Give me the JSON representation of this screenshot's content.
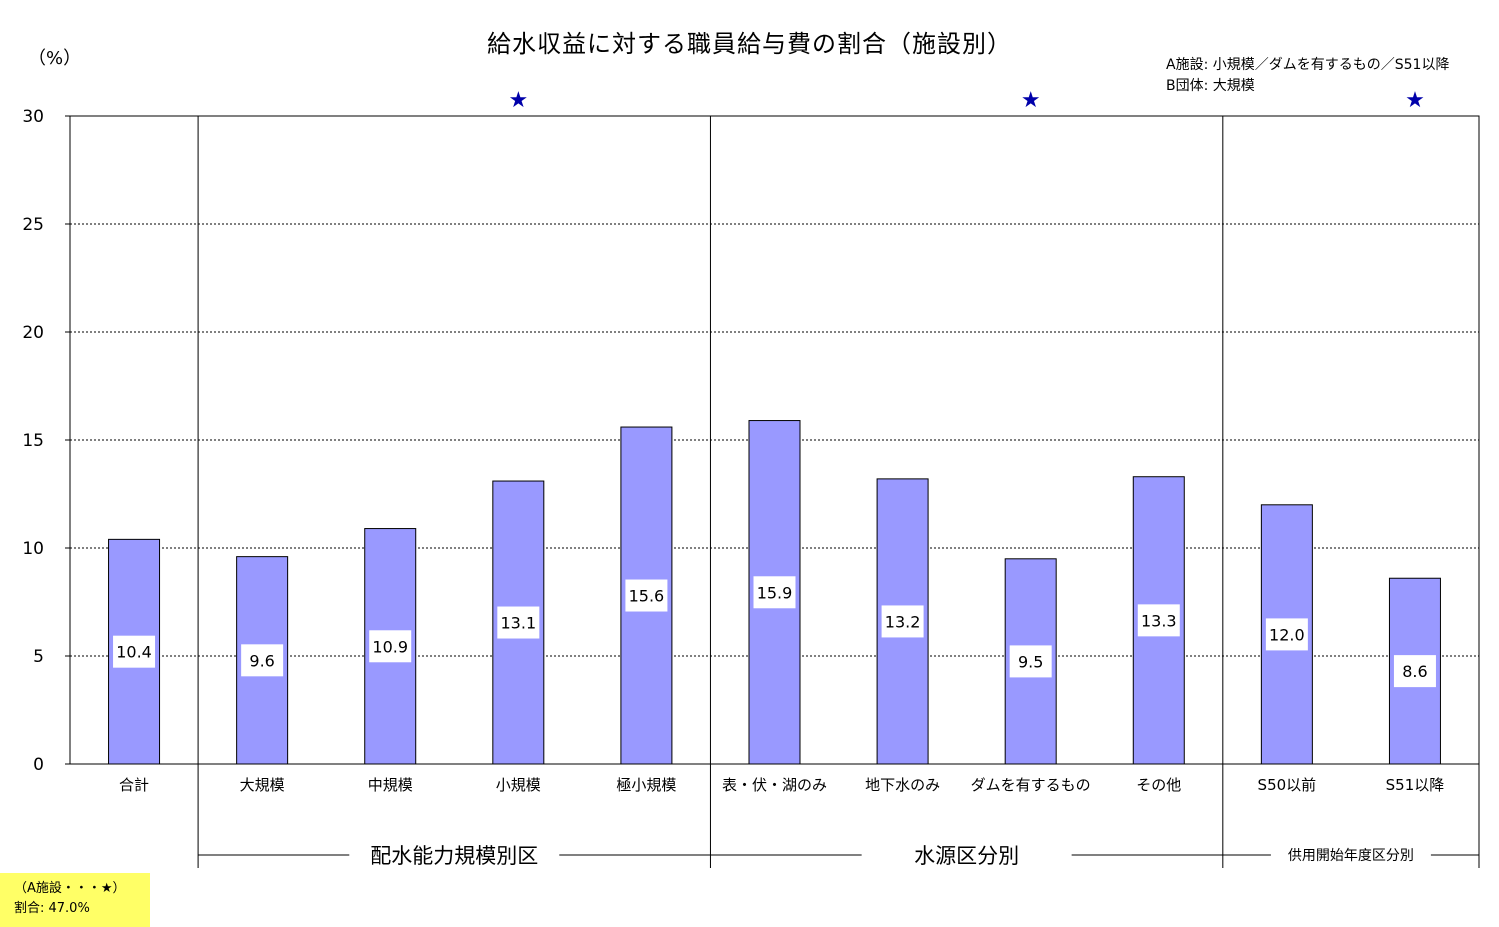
{
  "title": "給水収益に対する職員給与費の割合（施設別）",
  "unit_label": "（%）",
  "legend_note": [
    "A施設: 小規模／ダムを有するもの／S51以降",
    "B団体: 大規模"
  ],
  "yellow_note": {
    "line1": "（A施設・・・★）",
    "line2": "割合: 47.0%"
  },
  "colors": {
    "bar": "#9999ff",
    "star": "#0000aa",
    "note_bg": "#ffff66"
  },
  "chart_data": {
    "type": "bar",
    "title": "給水収益に対する職員給与費の割合（施設別）",
    "ylabel": "（%）",
    "ylim": [
      0,
      30
    ],
    "yticks": [
      0,
      5,
      10,
      15,
      20,
      25,
      30
    ],
    "grid": true,
    "categories": [
      "合計",
      "大規模",
      "中規模",
      "小規模",
      "極小規模",
      "表・伏・湖のみ",
      "地下水のみ",
      "ダムを有するもの",
      "その他",
      "S50以前",
      "S51以降"
    ],
    "values": [
      10.4,
      9.6,
      10.9,
      13.1,
      15.6,
      15.9,
      13.2,
      9.5,
      13.3,
      12.0,
      8.6
    ],
    "value_labels": [
      "10.4",
      "9.6",
      "10.9",
      "13.1",
      "15.6",
      "15.9",
      "13.2",
      "9.5",
      "13.3",
      "12.0",
      "8.6"
    ],
    "starred": [
      "小規模",
      "ダムを有するもの",
      "S51以降"
    ],
    "star_glyph": "★",
    "groups": [
      {
        "label": "配水能力規模別区",
        "categories": [
          "大規模",
          "中規模",
          "小規模",
          "極小規模"
        ]
      },
      {
        "label": "水源区分別",
        "categories": [
          "表・伏・湖のみ",
          "地下水のみ",
          "ダムを有するもの",
          "その他"
        ]
      },
      {
        "label": "供用開始年度区分別",
        "categories": [
          "S50以前",
          "S51以降"
        ]
      }
    ]
  }
}
